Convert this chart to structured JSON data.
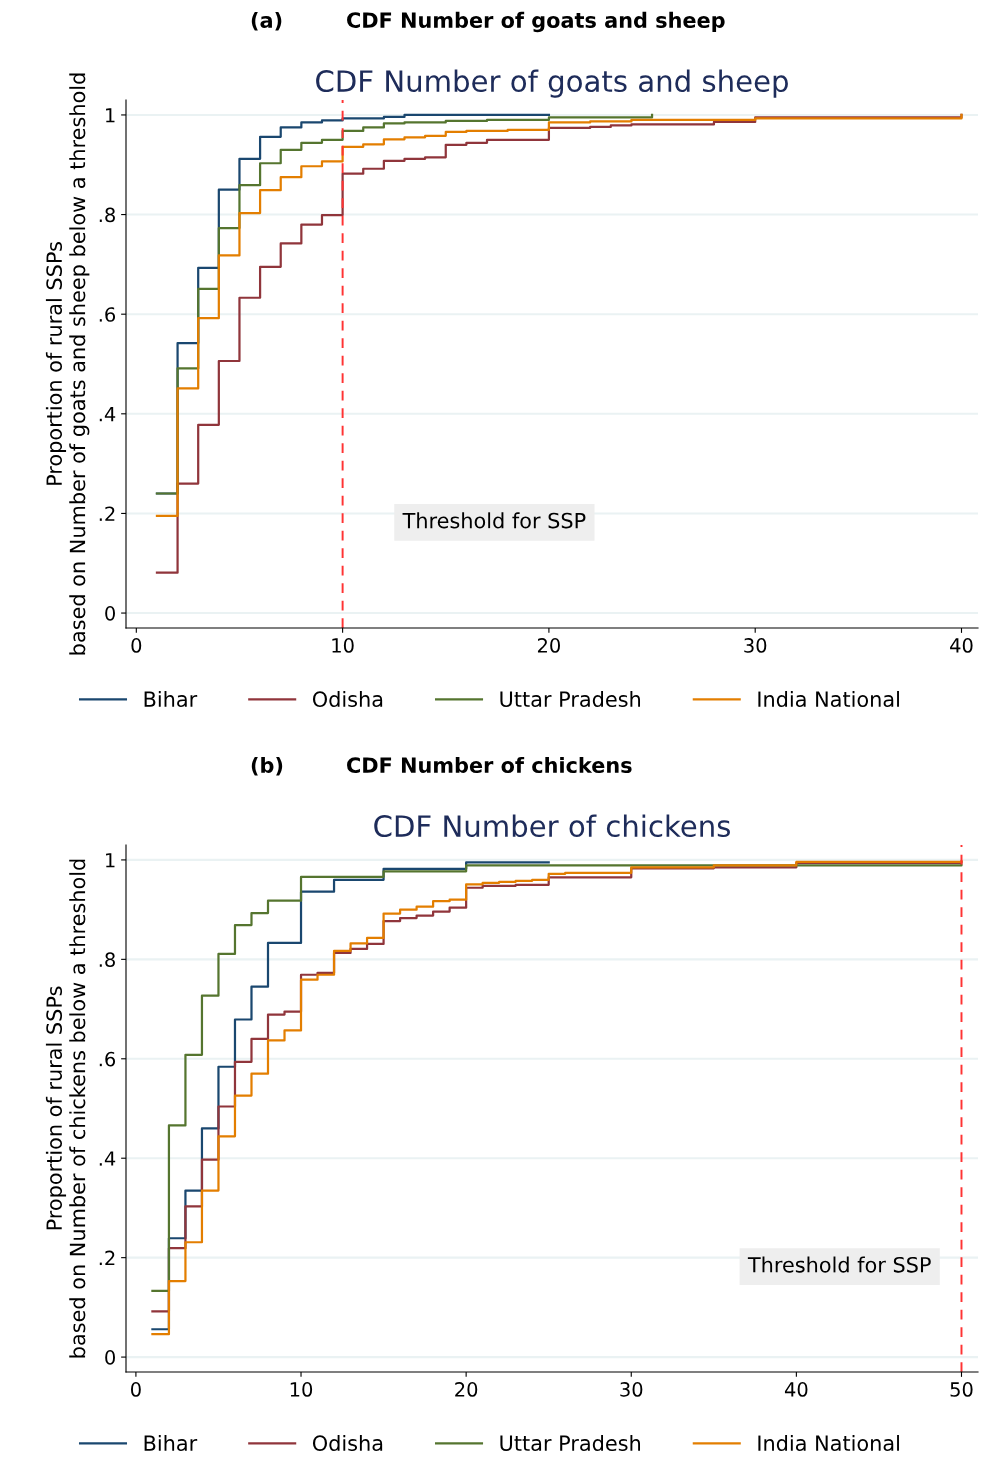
{
  "chart_data": [
    {
      "type": "step",
      "title": "CDF Number of goats and sheep",
      "annotations": [
        "(a)",
        "CDF Number of goats and sheep"
      ],
      "ylabel": "Proportion of rural SSPs\nbased on Number of goats and sheep below a threshold",
      "xlim": [
        -0.5,
        40.8
      ],
      "xticks": [
        0,
        10,
        20,
        30,
        40
      ],
      "ylim": [
        -0.03,
        1.03
      ],
      "yticks": [
        {
          "value": 0,
          "label": "0"
        },
        {
          "value": 0.2,
          "label": ".2"
        },
        {
          "value": 0.4,
          "label": ".4"
        },
        {
          "value": 0.6,
          "label": ".6"
        },
        {
          "value": 0.8,
          "label": ".8"
        },
        {
          "value": 1,
          "label": "1"
        }
      ],
      "grid": "y",
      "legend": "bottom",
      "ref_lines": [
        {
          "axis": "x",
          "value": 10,
          "label": "Threshold for SSP",
          "color": "#ff3333",
          "line_style": "dashed"
        }
      ],
      "series": [
        {
          "name": "Bihar",
          "color": "#1a476f",
          "x": [
            1,
            2,
            3,
            4,
            5,
            6,
            7,
            8,
            9,
            10,
            12,
            13,
            20
          ],
          "values": [
            0.24,
            0.542,
            0.693,
            0.85,
            0.912,
            0.956,
            0.975,
            0.985,
            0.989,
            0.993,
            0.996,
            1.0,
            1.0
          ]
        },
        {
          "name": "Odisha",
          "color": "#90353b",
          "x": [
            1,
            2,
            3,
            4,
            5,
            6,
            7,
            8,
            9,
            10,
            11,
            12,
            13,
            14,
            15,
            16,
            17,
            20,
            22,
            23,
            24,
            28,
            30,
            40
          ],
          "values": [
            0.081,
            0.26,
            0.378,
            0.506,
            0.633,
            0.695,
            0.742,
            0.78,
            0.799,
            0.882,
            0.892,
            0.908,
            0.912,
            0.915,
            0.94,
            0.944,
            0.95,
            0.974,
            0.976,
            0.979,
            0.981,
            0.986,
            0.995,
            1.0
          ]
        },
        {
          "name": "Uttar Pradesh",
          "color": "#55752f",
          "x": [
            1,
            2,
            3,
            4,
            5,
            6,
            7,
            8,
            9,
            10,
            11,
            12,
            13,
            15,
            17,
            20,
            25
          ],
          "values": [
            0.24,
            0.491,
            0.651,
            0.773,
            0.859,
            0.903,
            0.93,
            0.944,
            0.95,
            0.968,
            0.975,
            0.983,
            0.985,
            0.988,
            0.99,
            0.995,
            1.0
          ]
        },
        {
          "name": "India National",
          "color": "#e37e00",
          "x": [
            1,
            2,
            3,
            4,
            5,
            6,
            7,
            8,
            9,
            10,
            11,
            12,
            13,
            14,
            15,
            16,
            18,
            20,
            22,
            24,
            30,
            40
          ],
          "values": [
            0.195,
            0.451,
            0.592,
            0.718,
            0.803,
            0.849,
            0.875,
            0.897,
            0.907,
            0.936,
            0.941,
            0.951,
            0.955,
            0.958,
            0.966,
            0.968,
            0.97,
            0.985,
            0.987,
            0.99,
            0.993,
            1.0
          ]
        }
      ]
    },
    {
      "type": "step",
      "title": "CDF Number of chickens",
      "annotations": [
        "(b)",
        "CDF Number of chickens"
      ],
      "ylabel": "Proportion of rural SSPs\nbased on Number of chickens below a threshold",
      "xlim": [
        -0.6,
        51
      ],
      "xticks": [
        0,
        10,
        20,
        30,
        40,
        50
      ],
      "ylim": [
        -0.03,
        1.03
      ],
      "yticks": [
        {
          "value": 0,
          "label": "0"
        },
        {
          "value": 0.2,
          "label": ".2"
        },
        {
          "value": 0.4,
          "label": ".4"
        },
        {
          "value": 0.6,
          "label": ".6"
        },
        {
          "value": 0.8,
          "label": ".8"
        },
        {
          "value": 1,
          "label": "1"
        }
      ],
      "grid": "y",
      "legend": "bottom",
      "ref_lines": [
        {
          "axis": "x",
          "value": 50,
          "label": "Threshold for SSP",
          "color": "#ff3333",
          "line_style": "dashed"
        }
      ],
      "series": [
        {
          "name": "Bihar",
          "color": "#1a476f",
          "x": [
            1,
            2,
            3,
            4,
            5,
            6,
            7,
            8,
            10,
            12,
            15,
            20,
            25
          ],
          "values": [
            0.056,
            0.239,
            0.335,
            0.46,
            0.584,
            0.679,
            0.745,
            0.833,
            0.936,
            0.96,
            0.982,
            0.995,
            0.995
          ]
        },
        {
          "name": "Odisha",
          "color": "#90353b",
          "x": [
            1,
            2,
            3,
            4,
            5,
            6,
            7,
            8,
            9,
            10,
            11,
            12,
            13,
            14,
            15,
            16,
            17,
            18,
            19,
            20,
            21,
            23,
            25,
            30,
            35,
            40,
            50
          ],
          "values": [
            0.092,
            0.219,
            0.303,
            0.397,
            0.504,
            0.594,
            0.64,
            0.689,
            0.695,
            0.769,
            0.773,
            0.813,
            0.821,
            0.831,
            0.877,
            0.883,
            0.888,
            0.896,
            0.904,
            0.944,
            0.948,
            0.95,
            0.965,
            0.983,
            0.985,
            0.994,
            0.996
          ]
        },
        {
          "name": "Uttar Pradesh",
          "color": "#55752f",
          "x": [
            1,
            2,
            3,
            4,
            5,
            6,
            7,
            8,
            10,
            15,
            20,
            50
          ],
          "values": [
            0.133,
            0.466,
            0.608,
            0.727,
            0.811,
            0.869,
            0.893,
            0.918,
            0.966,
            0.977,
            0.989,
            0.99
          ]
        },
        {
          "name": "India National",
          "color": "#e37e00",
          "x": [
            1,
            2,
            3,
            4,
            5,
            6,
            7,
            8,
            9,
            10,
            11,
            12,
            13,
            14,
            15,
            16,
            17,
            18,
            19,
            20,
            21,
            22,
            23,
            24,
            25,
            26,
            30,
            35,
            40,
            50
          ],
          "values": [
            0.046,
            0.153,
            0.231,
            0.335,
            0.444,
            0.526,
            0.57,
            0.637,
            0.657,
            0.759,
            0.769,
            0.817,
            0.832,
            0.843,
            0.892,
            0.9,
            0.906,
            0.917,
            0.92,
            0.951,
            0.954,
            0.956,
            0.958,
            0.96,
            0.972,
            0.974,
            0.985,
            0.989,
            0.996,
            0.997
          ]
        }
      ]
    }
  ]
}
